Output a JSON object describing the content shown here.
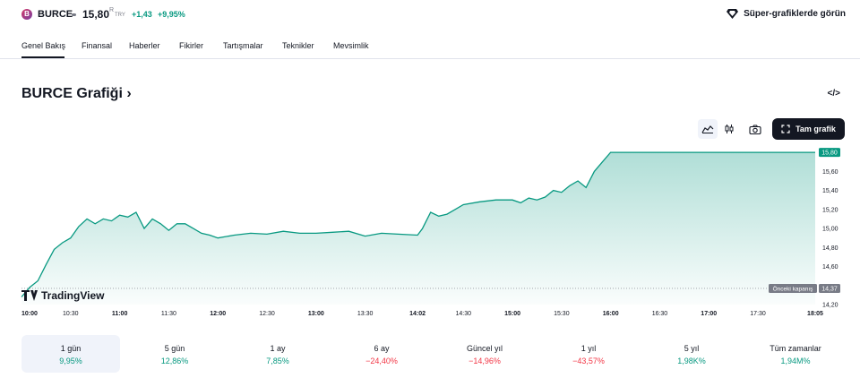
{
  "header": {
    "logo_text": "B",
    "symbol": "BURCE",
    "price": "15,80",
    "price_suffix": "R",
    "currency": "TRY",
    "change": "+1,43",
    "change_percent": "+9,95%",
    "super_charts_label": "Süper-grafiklerde görün"
  },
  "tabs": [
    "Genel Bakış",
    "Finansal",
    "Haberler",
    "Fikirler",
    "Tartışmalar",
    "Teknikler",
    "Mevsimlik"
  ],
  "section": {
    "title": "BURCE Grafiği",
    "title_chevron": "›",
    "embed_icon": "</>"
  },
  "toolbar": {
    "full_chart_label": "Tam grafik",
    "icons": [
      "area-chart-icon",
      "candles-icon",
      "camera-icon",
      "fullscreen-icon"
    ]
  },
  "chart_data": {
    "type": "area",
    "line_color": "#089981",
    "fill_color": "#089981",
    "x_labels": [
      "10:00",
      "10:30",
      "11:00",
      "11:30",
      "12:00",
      "12:30",
      "13:00",
      "13:30",
      "14:02",
      "14:30",
      "15:00",
      "15:30",
      "16:00",
      "16:30",
      "17:00",
      "17:30",
      "18:05"
    ],
    "x_bold": [
      "10:00",
      "11:00",
      "12:00",
      "13:00",
      "14:02",
      "15:00",
      "16:00",
      "17:00",
      "18:05"
    ],
    "y_ticks": [
      "15,60",
      "15,40",
      "15,20",
      "15,00",
      "14,80",
      "14,60",
      "14,20"
    ],
    "ylim": [
      14.2,
      15.82
    ],
    "current_price_label": "15,80",
    "previous_close_label": "Önceki kapanış",
    "previous_close_value": "14,37",
    "previous_close": 14.37,
    "watermark": "TradingView",
    "series": [
      {
        "values": [
          [
            "10:00",
            14.28
          ],
          [
            "10:05",
            14.38
          ],
          [
            "10:10",
            14.45
          ],
          [
            "10:15",
            14.62
          ],
          [
            "10:20",
            14.78
          ],
          [
            "10:25",
            14.85
          ],
          [
            "10:30",
            14.9
          ],
          [
            "10:35",
            15.02
          ],
          [
            "10:40",
            15.1
          ],
          [
            "10:45",
            15.05
          ],
          [
            "10:50",
            15.1
          ],
          [
            "10:55",
            15.08
          ],
          [
            "11:00",
            15.14
          ],
          [
            "11:05",
            15.12
          ],
          [
            "11:10",
            15.17
          ],
          [
            "11:15",
            15.0
          ],
          [
            "11:20",
            15.1
          ],
          [
            "11:25",
            15.05
          ],
          [
            "11:30",
            14.98
          ],
          [
            "11:35",
            15.05
          ],
          [
            "11:40",
            15.05
          ],
          [
            "11:45",
            15.0
          ],
          [
            "11:50",
            14.95
          ],
          [
            "11:55",
            14.93
          ],
          [
            "12:00",
            14.9
          ],
          [
            "12:10",
            14.93
          ],
          [
            "12:20",
            14.95
          ],
          [
            "12:30",
            14.94
          ],
          [
            "12:40",
            14.97
          ],
          [
            "12:50",
            14.95
          ],
          [
            "13:00",
            14.95
          ],
          [
            "13:10",
            14.96
          ],
          [
            "13:20",
            14.97
          ],
          [
            "13:30",
            14.92
          ],
          [
            "13:40",
            14.95
          ],
          [
            "13:50",
            14.94
          ],
          [
            "14:02",
            14.93
          ],
          [
            "14:05",
            15.0
          ],
          [
            "14:10",
            15.17
          ],
          [
            "14:15",
            15.13
          ],
          [
            "14:20",
            15.15
          ],
          [
            "14:25",
            15.2
          ],
          [
            "14:30",
            15.25
          ],
          [
            "14:40",
            15.28
          ],
          [
            "14:50",
            15.3
          ],
          [
            "15:00",
            15.3
          ],
          [
            "15:05",
            15.27
          ],
          [
            "15:10",
            15.32
          ],
          [
            "15:15",
            15.3
          ],
          [
            "15:20",
            15.33
          ],
          [
            "15:25",
            15.4
          ],
          [
            "15:30",
            15.38
          ],
          [
            "15:35",
            15.45
          ],
          [
            "15:40",
            15.5
          ],
          [
            "15:45",
            15.43
          ],
          [
            "15:50",
            15.6
          ],
          [
            "15:55",
            15.7
          ],
          [
            "16:00",
            15.8
          ],
          [
            "16:30",
            15.8
          ],
          [
            "17:00",
            15.8
          ],
          [
            "17:30",
            15.8
          ],
          [
            "18:05",
            15.8
          ]
        ]
      }
    ]
  },
  "periods": [
    {
      "label": "1 gün",
      "value": "9,95%",
      "sign": "pos",
      "selected": true
    },
    {
      "label": "5 gün",
      "value": "12,86%",
      "sign": "pos"
    },
    {
      "label": "1 ay",
      "value": "7,85%",
      "sign": "pos"
    },
    {
      "label": "6 ay",
      "value": "−24,40%",
      "sign": "neg"
    },
    {
      "label": "Güncel yıl",
      "value": "−14,96%",
      "sign": "neg"
    },
    {
      "label": "1 yıl",
      "value": "−43,57%",
      "sign": "neg"
    },
    {
      "label": "5 yıl",
      "value": "1,98K%",
      "sign": "pos"
    },
    {
      "label": "Tüm zamanlar",
      "value": "1,94M%",
      "sign": "pos"
    }
  ]
}
